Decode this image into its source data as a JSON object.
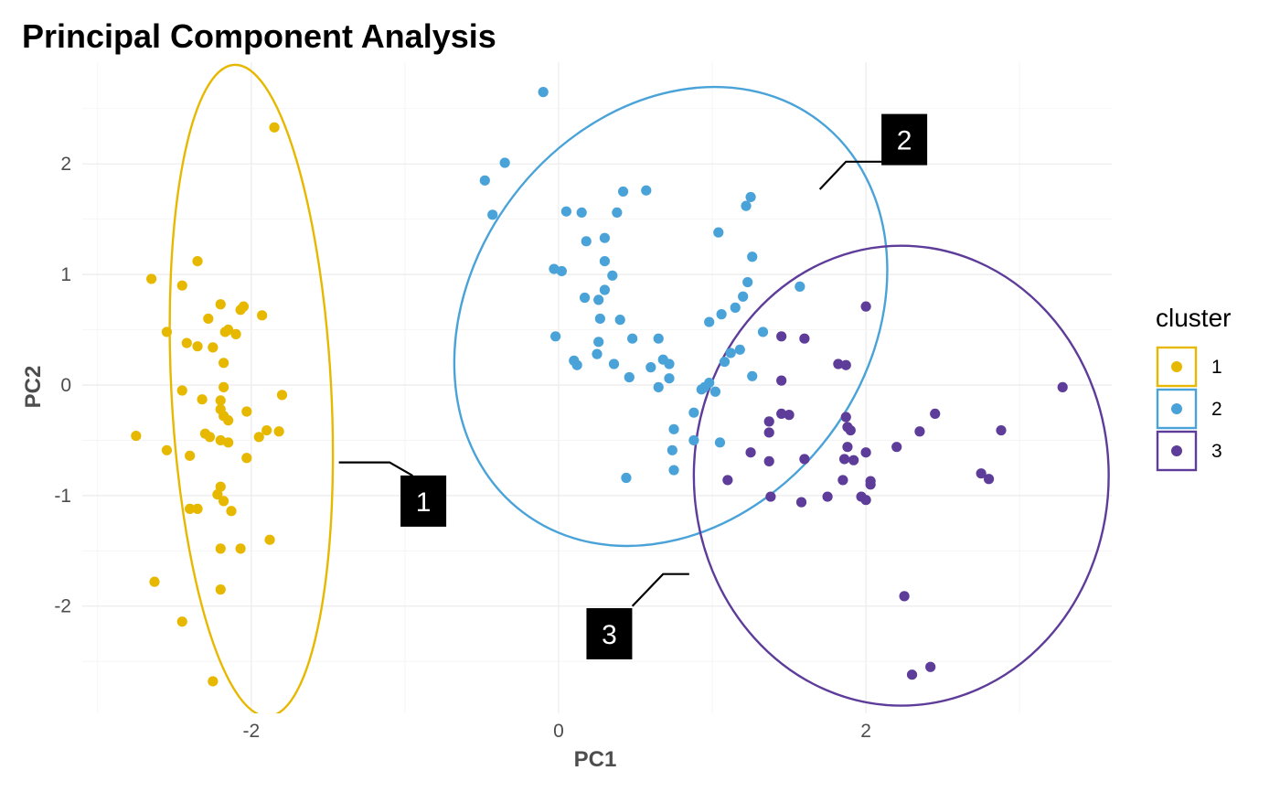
{
  "chart_data": {
    "type": "scatter",
    "title": "Principal Component Analysis",
    "xlabel": "PC1",
    "ylabel": "PC2",
    "xlim": [
      -3.1,
      3.6
    ],
    "ylim": [
      -2.97,
      2.92
    ],
    "xticks": [
      -2,
      0,
      2
    ],
    "yticks": [
      -2,
      -1,
      0,
      1,
      2
    ],
    "grid": true,
    "legend": {
      "title": "cluster",
      "position": "right"
    },
    "series": [
      {
        "name": "1",
        "color": "#E7B800",
        "ellipse": {
          "cx": -2.0,
          "cy": -0.05,
          "rx": 0.52,
          "ry": 2.95,
          "angle_deg": -3
        },
        "label": {
          "text": "1",
          "x": -0.88,
          "y": -1.05,
          "line_from": [
            -1.43,
            -0.7
          ],
          "line_elbow": [
            -1.1,
            -0.7
          ],
          "line_to": [
            -0.95,
            -0.82
          ]
        },
        "points": [
          [
            -1.85,
            2.33
          ],
          [
            -2.35,
            1.12
          ],
          [
            -2.65,
            0.96
          ],
          [
            -2.45,
            0.9
          ],
          [
            -2.2,
            0.73
          ],
          [
            -2.05,
            0.71
          ],
          [
            -2.07,
            0.68
          ],
          [
            -1.93,
            0.63
          ],
          [
            -2.28,
            0.6
          ],
          [
            -2.55,
            0.48
          ],
          [
            -2.15,
            0.5
          ],
          [
            -2.1,
            0.46
          ],
          [
            -2.17,
            0.48
          ],
          [
            -2.42,
            0.38
          ],
          [
            -2.35,
            0.35
          ],
          [
            -2.25,
            0.34
          ],
          [
            -2.18,
            0.2
          ],
          [
            -2.18,
            -0.02
          ],
          [
            -2.45,
            -0.05
          ],
          [
            -1.8,
            -0.09
          ],
          [
            -2.32,
            -0.13
          ],
          [
            -2.2,
            -0.14
          ],
          [
            -2.2,
            -0.22
          ],
          [
            -2.03,
            -0.24
          ],
          [
            -2.18,
            -0.28
          ],
          [
            -2.15,
            -0.32
          ],
          [
            -1.9,
            -0.41
          ],
          [
            -1.82,
            -0.42
          ],
          [
            -2.3,
            -0.44
          ],
          [
            -2.27,
            -0.47
          ],
          [
            -1.95,
            -0.47
          ],
          [
            -2.2,
            -0.5
          ],
          [
            -2.15,
            -0.52
          ],
          [
            -2.75,
            -0.46
          ],
          [
            -2.55,
            -0.59
          ],
          [
            -2.4,
            -0.64
          ],
          [
            -2.03,
            -0.66
          ],
          [
            -2.2,
            -0.92
          ],
          [
            -2.22,
            -0.99
          ],
          [
            -2.18,
            -1.05
          ],
          [
            -2.4,
            -1.12
          ],
          [
            -2.35,
            -1.12
          ],
          [
            -2.13,
            -1.14
          ],
          [
            -1.88,
            -1.4
          ],
          [
            -2.2,
            -1.48
          ],
          [
            -2.07,
            -1.48
          ],
          [
            -2.63,
            -1.78
          ],
          [
            -2.2,
            -1.85
          ],
          [
            -2.45,
            -2.14
          ],
          [
            -2.25,
            -2.68
          ]
        ]
      },
      {
        "name": "2",
        "color": "#4AA3D8",
        "ellipse": {
          "cx": 0.73,
          "cy": 0.62,
          "rx": 1.29,
          "ry": 2.22,
          "angle_deg": 37
        },
        "label": {
          "text": "2",
          "x": 2.25,
          "y": 2.22,
          "line_from": [
            1.7,
            1.77
          ],
          "line_elbow": [
            1.87,
            2.02
          ],
          "line_to": [
            2.12,
            2.02
          ]
        },
        "points": [
          [
            -0.1,
            2.65
          ],
          [
            -0.35,
            2.01
          ],
          [
            -0.48,
            1.85
          ],
          [
            -0.43,
            1.54
          ],
          [
            0.42,
            1.75
          ],
          [
            0.57,
            1.76
          ],
          [
            1.25,
            1.7
          ],
          [
            1.22,
            1.62
          ],
          [
            0.05,
            1.57
          ],
          [
            0.15,
            1.56
          ],
          [
            0.38,
            1.56
          ],
          [
            1.04,
            1.38
          ],
          [
            0.3,
            1.33
          ],
          [
            0.18,
            1.3
          ],
          [
            1.26,
            1.16
          ],
          [
            0.3,
            1.12
          ],
          [
            -0.03,
            1.05
          ],
          [
            0.02,
            1.03
          ],
          [
            0.35,
            0.99
          ],
          [
            1.23,
            0.93
          ],
          [
            1.57,
            0.89
          ],
          [
            0.3,
            0.86
          ],
          [
            1.2,
            0.8
          ],
          [
            0.17,
            0.79
          ],
          [
            0.26,
            0.77
          ],
          [
            1.15,
            0.7
          ],
          [
            1.06,
            0.64
          ],
          [
            0.27,
            0.6
          ],
          [
            0.4,
            0.59
          ],
          [
            0.98,
            0.57
          ],
          [
            1.33,
            0.48
          ],
          [
            0.65,
            0.42
          ],
          [
            0.48,
            0.42
          ],
          [
            -0.02,
            0.44
          ],
          [
            0.26,
            0.39
          ],
          [
            1.18,
            0.32
          ],
          [
            1.12,
            0.29
          ],
          [
            0.25,
            0.28
          ],
          [
            0.1,
            0.22
          ],
          [
            0.68,
            0.23
          ],
          [
            0.72,
            0.19
          ],
          [
            0.12,
            0.18
          ],
          [
            0.36,
            0.19
          ],
          [
            0.6,
            0.16
          ],
          [
            1.08,
            0.21
          ],
          [
            0.46,
            0.07
          ],
          [
            0.72,
            0.06
          ],
          [
            1.26,
            0.08
          ],
          [
            0.98,
            0.02
          ],
          [
            0.95,
            -0.02
          ],
          [
            0.93,
            -0.04
          ],
          [
            0.65,
            -0.02
          ],
          [
            1.02,
            -0.06
          ],
          [
            0.88,
            -0.25
          ],
          [
            0.75,
            -0.4
          ],
          [
            0.88,
            -0.5
          ],
          [
            1.05,
            -0.52
          ],
          [
            0.74,
            -0.59
          ],
          [
            0.75,
            -0.77
          ],
          [
            0.44,
            -0.84
          ]
        ]
      },
      {
        "name": "3",
        "color": "#5E3C99",
        "ellipse": {
          "cx": 2.23,
          "cy": -0.82,
          "rx": 1.35,
          "ry": 2.08,
          "angle_deg": 0
        },
        "label": {
          "text": "3",
          "x": 0.33,
          "y": -2.25,
          "line_from": [
            0.85,
            -1.71
          ],
          "line_elbow": [
            0.68,
            -1.71
          ],
          "line_to": [
            0.48,
            -2.0
          ]
        },
        "points": [
          [
            2.0,
            0.71
          ],
          [
            1.45,
            0.44
          ],
          [
            1.6,
            0.42
          ],
          [
            1.82,
            0.19
          ],
          [
            1.87,
            0.18
          ],
          [
            1.45,
            0.04
          ],
          [
            3.28,
            -0.02
          ],
          [
            1.45,
            -0.26
          ],
          [
            1.5,
            -0.27
          ],
          [
            1.87,
            -0.29
          ],
          [
            2.45,
            -0.26
          ],
          [
            1.37,
            -0.33
          ],
          [
            1.88,
            -0.38
          ],
          [
            1.9,
            -0.41
          ],
          [
            2.35,
            -0.42
          ],
          [
            2.88,
            -0.41
          ],
          [
            1.37,
            -0.43
          ],
          [
            2.2,
            -0.56
          ],
          [
            1.88,
            -0.56
          ],
          [
            2.0,
            -0.61
          ],
          [
            1.25,
            -0.61
          ],
          [
            1.86,
            -0.67
          ],
          [
            1.92,
            -0.68
          ],
          [
            1.37,
            -0.69
          ],
          [
            1.6,
            -0.67
          ],
          [
            2.75,
            -0.8
          ],
          [
            2.8,
            -0.85
          ],
          [
            1.1,
            -0.86
          ],
          [
            1.85,
            -0.86
          ],
          [
            2.03,
            -0.87
          ],
          [
            2.03,
            -0.9
          ],
          [
            1.38,
            -1.01
          ],
          [
            1.75,
            -1.01
          ],
          [
            1.97,
            -1.01
          ],
          [
            2.0,
            -1.04
          ],
          [
            1.58,
            -1.06
          ],
          [
            2.25,
            -1.91
          ],
          [
            2.42,
            -2.55
          ],
          [
            2.3,
            -2.62
          ]
        ]
      }
    ]
  }
}
